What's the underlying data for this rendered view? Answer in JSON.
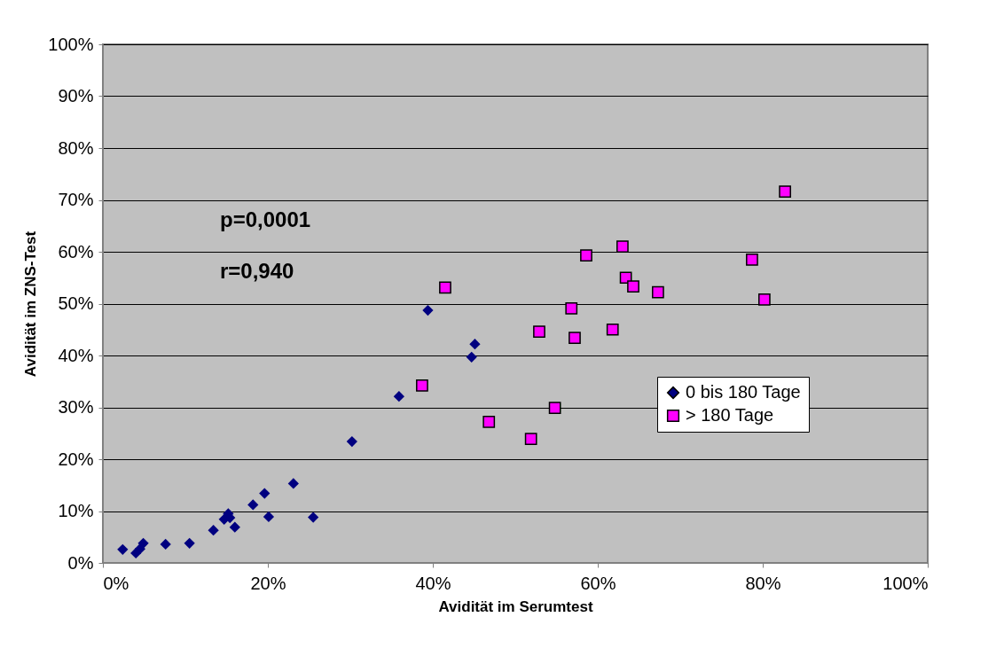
{
  "chart_data": {
    "type": "scatter",
    "xlabel": "Avidität im Serumtest",
    "ylabel": "Avidität im ZNS-Test",
    "annotations": [
      "p=0,0001",
      "r=0,940"
    ],
    "xlim": [
      0,
      100
    ],
    "ylim": [
      0,
      100
    ],
    "xticks": [
      {
        "value": 0,
        "label": "0%"
      },
      {
        "value": 20,
        "label": "20%"
      },
      {
        "value": 40,
        "label": "40%"
      },
      {
        "value": 60,
        "label": "60%"
      },
      {
        "value": 80,
        "label": "80%"
      },
      {
        "value": 100,
        "label": "100%"
      }
    ],
    "yticks": [
      {
        "value": 0,
        "label": "0%"
      },
      {
        "value": 10,
        "label": "10%"
      },
      {
        "value": 20,
        "label": "20%"
      },
      {
        "value": 30,
        "label": "30%"
      },
      {
        "value": 40,
        "label": "40%"
      },
      {
        "value": 50,
        "label": "50%"
      },
      {
        "value": 60,
        "label": "60%"
      },
      {
        "value": 70,
        "label": "70%"
      },
      {
        "value": 80,
        "label": "80%"
      },
      {
        "value": 90,
        "label": "90%"
      },
      {
        "value": 100,
        "label": "100%"
      }
    ],
    "grid": "y",
    "legend": "bottom right",
    "series": [
      {
        "name": "0 bis 180 Tage",
        "color": "#000080",
        "marker": "diamond",
        "x": [
          2.4,
          4.0,
          4.5,
          4.9,
          7.6,
          10.5,
          13.4,
          14.7,
          15.2,
          15.4,
          16.0,
          18.2,
          19.6,
          20.1,
          23.1,
          25.5,
          30.2,
          35.9,
          39.4,
          45.1,
          44.7
        ],
        "values": [
          2.6,
          1.9,
          2.7,
          3.8,
          3.6,
          3.8,
          6.3,
          8.4,
          9.5,
          8.7,
          6.9,
          11.2,
          13.4,
          8.9,
          15.3,
          8.8,
          23.4,
          32.1,
          48.7,
          42.2,
          39.7
        ]
      },
      {
        "name": "> 180 Tage",
        "color": "#ff00ff",
        "marker": "square",
        "x": [
          41.5,
          38.7,
          46.8,
          51.9,
          54.8,
          52.9,
          56.8,
          57.2,
          58.6,
          61.8,
          63.0,
          63.4,
          64.3,
          67.3,
          78.7,
          80.2,
          82.7
        ],
        "values": [
          53.1,
          34.2,
          27.2,
          23.9,
          29.9,
          44.6,
          49.1,
          43.4,
          59.3,
          45.0,
          61.0,
          55.0,
          53.3,
          52.2,
          58.5,
          50.8,
          71.6
        ]
      }
    ]
  }
}
